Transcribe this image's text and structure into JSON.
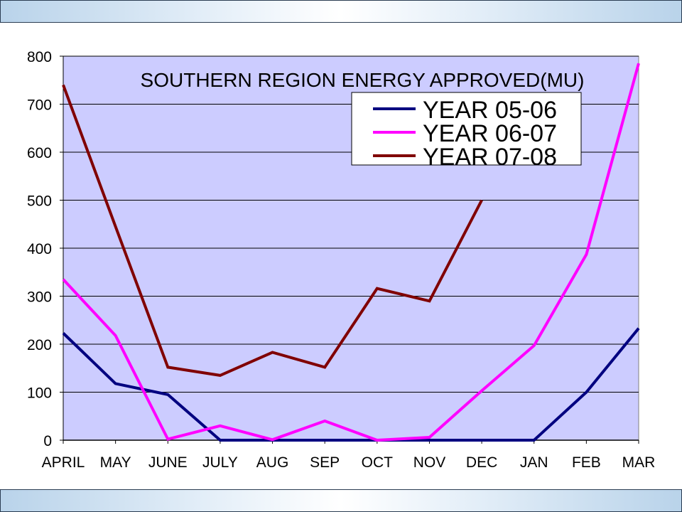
{
  "chart_data": {
    "type": "line",
    "title": "SOUTHERN REGION ENERGY APPROVED(MU)",
    "xlabel": "",
    "ylabel": "",
    "categories": [
      "APRIL",
      "MAY",
      "JUNE",
      "JULY",
      "AUG",
      "SEP",
      "OCT",
      "NOV",
      "DEC",
      "JAN",
      "FEB",
      "MAR"
    ],
    "ylim": [
      0,
      800
    ],
    "yticks": [
      "0",
      "100",
      "200",
      "300",
      "400",
      "500",
      "600",
      "700",
      "800"
    ],
    "grid": true,
    "legend_position": "top-right",
    "series": [
      {
        "name": "YEAR 05-06",
        "color": "#000080",
        "values": [
          223,
          118,
          95,
          0,
          0,
          0,
          0,
          0,
          0,
          0,
          100,
          233
        ]
      },
      {
        "name": "YEAR 06-07",
        "color": "#ff00ff",
        "values": [
          335,
          218,
          2,
          30,
          1,
          40,
          0,
          6,
          103,
          197,
          387,
          785
        ]
      },
      {
        "name": "YEAR 07-08",
        "color": "#800000",
        "values": [
          740,
          445,
          152,
          135,
          183,
          152,
          316,
          290,
          500,
          null,
          null,
          null
        ]
      }
    ]
  },
  "colors": {
    "plot_background": "#ccccff",
    "gridline": "#000000"
  }
}
